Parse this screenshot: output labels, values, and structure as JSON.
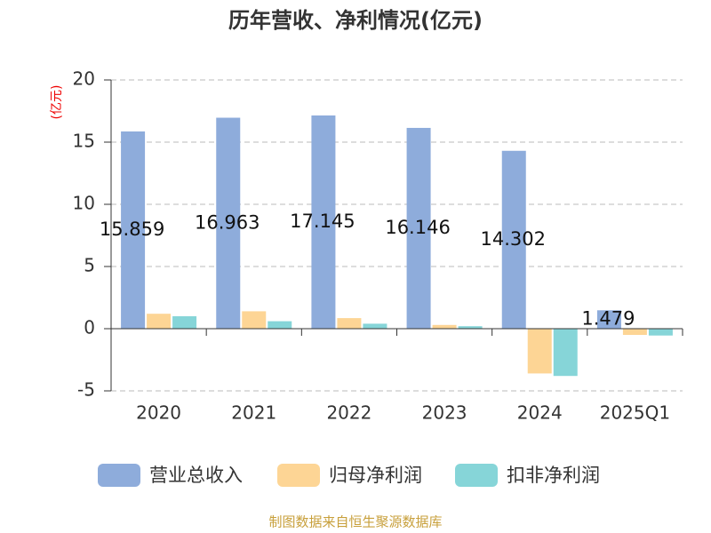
{
  "chart_data": {
    "type": "bar",
    "title": "历年营收、净利情况(亿元)",
    "y_label": "(亿元)",
    "categories": [
      "2020",
      "2021",
      "2022",
      "2023",
      "2024",
      "2025Q1"
    ],
    "series": [
      {
        "name": "营业总收入",
        "color": "#8eacdb",
        "values": [
          15.859,
          16.963,
          17.145,
          16.146,
          14.302,
          1.479
        ],
        "show_labels": true
      },
      {
        "name": "归母净利润",
        "color": "#fdd595",
        "values": [
          1.2,
          1.4,
          0.85,
          0.3,
          -3.6,
          -0.5
        ],
        "show_labels": false
      },
      {
        "name": "扣非净利润",
        "color": "#86d5d8",
        "values": [
          1.0,
          0.6,
          0.4,
          0.2,
          -3.8,
          -0.55
        ],
        "show_labels": false
      }
    ],
    "ylim": [
      -5,
      20
    ],
    "yticks": [
      -5,
      0,
      5,
      10,
      15,
      20
    ],
    "grid": true,
    "legend": "bottom",
    "source": "制图数据来自恒生聚源数据库"
  }
}
